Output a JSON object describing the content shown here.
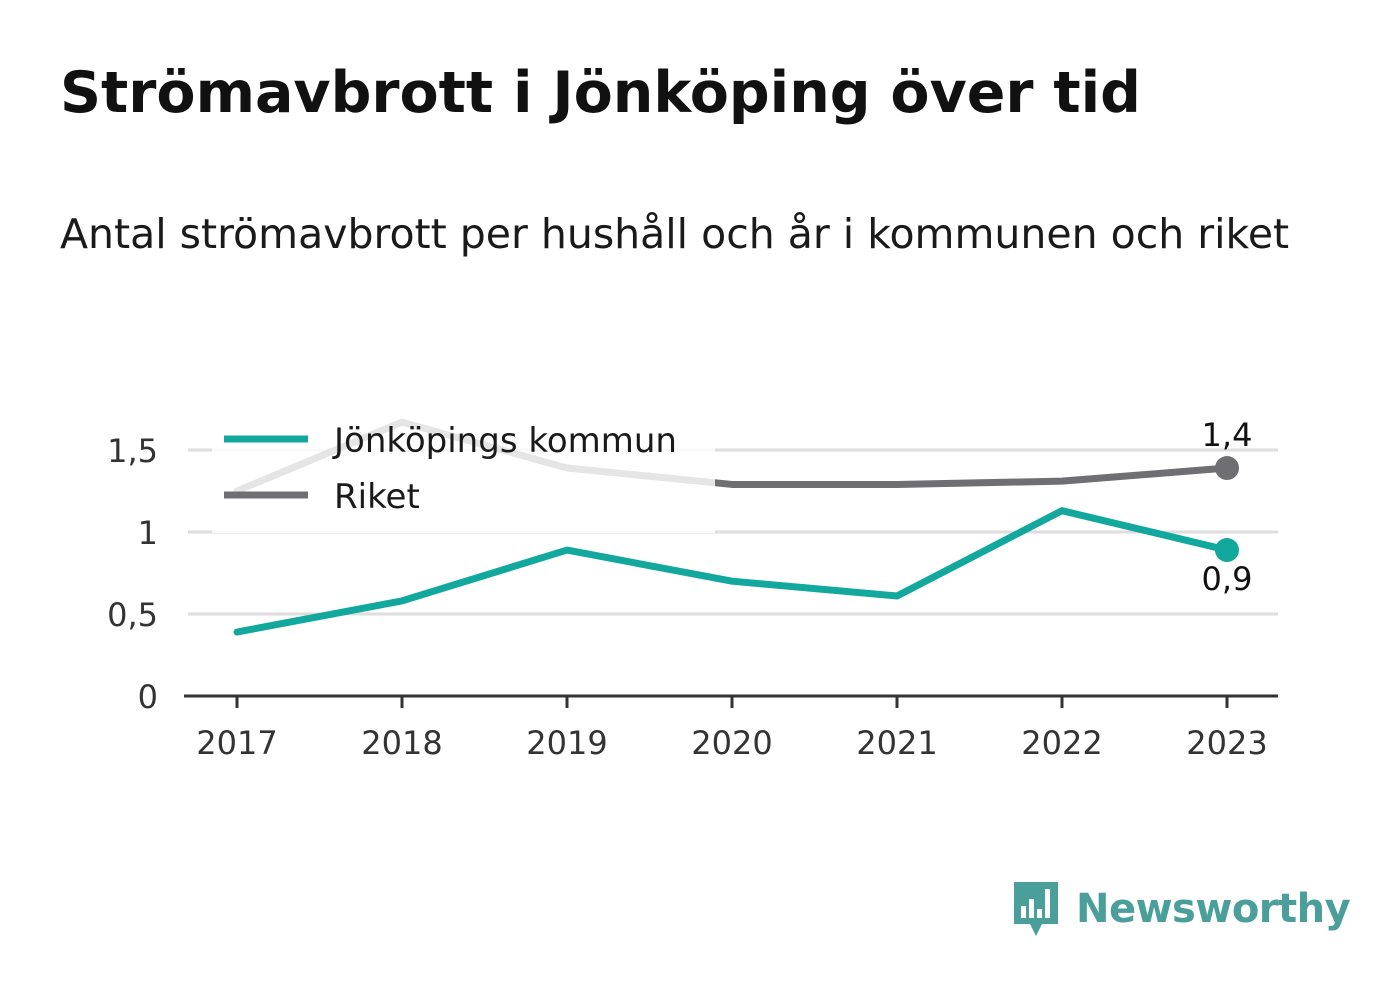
{
  "header": {
    "title": "Strömavbrott i Jönköping över tid",
    "subtitle": "Antal strömavbrott per hushåll och år i kommunen och riket"
  },
  "chart_data": {
    "type": "line",
    "title": "Strömavbrott i Jönköping över tid",
    "subtitle": "Antal strömavbrott per hushåll och år i kommunen och riket",
    "xlabel": "",
    "ylabel": "",
    "categories": [
      "2017",
      "2018",
      "2019",
      "2020",
      "2021",
      "2022",
      "2023"
    ],
    "ylim": [
      0,
      1.8
    ],
    "yticks": [
      0,
      0.5,
      1,
      1.5
    ],
    "ytick_labels": [
      "0",
      "0,5",
      "1",
      "1,5"
    ],
    "grid": true,
    "legend_placement": "top-left",
    "series": [
      {
        "name": "Jönköpings kommun",
        "color": "#12a89d",
        "values": [
          0.39,
          0.58,
          0.89,
          0.7,
          0.61,
          1.13,
          0.89
        ],
        "end_label": "0,9"
      },
      {
        "name": "Riket",
        "color": "#6e6e73",
        "values": [
          1.25,
          1.67,
          1.39,
          1.29,
          1.29,
          1.31,
          1.39
        ],
        "end_label": "1,4"
      }
    ]
  },
  "branding": {
    "name": "Newsworthy",
    "icon": "newsworthy-logo-icon",
    "color": "#4a9f9a"
  }
}
